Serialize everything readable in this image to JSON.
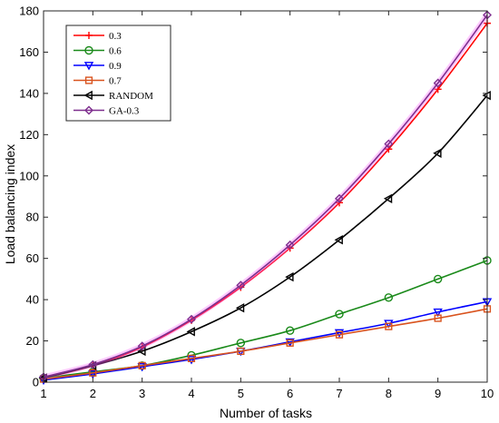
{
  "chart_data": {
    "type": "line",
    "title": "",
    "xlabel": "Number of tasks",
    "ylabel": "Load balancing index",
    "x": [
      1,
      2,
      3,
      4,
      5,
      6,
      7,
      8,
      9,
      10
    ],
    "xlim": [
      1,
      10
    ],
    "ylim": [
      0,
      180
    ],
    "xticks": [
      "1",
      "2",
      "3",
      "4",
      "5",
      "6",
      "7",
      "8",
      "9",
      "10"
    ],
    "yticks": [
      "0",
      "20",
      "40",
      "60",
      "80",
      "100",
      "120",
      "140",
      "160",
      "180"
    ],
    "grid": false,
    "legend_position": "top-left",
    "series": [
      {
        "name": "0.3",
        "color": "#ff0000",
        "marker": "plus",
        "values": [
          2,
          8,
          17,
          30,
          46,
          65,
          87,
          113,
          142,
          174
        ]
      },
      {
        "name": "0.6",
        "color": "#1a8a1a",
        "marker": "circle",
        "values": [
          2,
          5,
          8,
          13,
          19,
          25,
          33,
          41,
          50,
          59
        ]
      },
      {
        "name": "0.9",
        "color": "#0000ff",
        "marker": "triangle-down",
        "values": [
          1,
          4,
          7.5,
          11,
          15,
          19.5,
          24,
          28.5,
          34,
          39
        ]
      },
      {
        "name": "0.7",
        "color": "#d9531e",
        "marker": "square",
        "values": [
          1.5,
          4.5,
          8,
          11.5,
          15,
          19,
          23,
          27,
          31,
          35.5
        ]
      },
      {
        "name": "RANDOM",
        "color": "#000000",
        "marker": "triangle-left",
        "values": [
          2,
          8,
          15,
          24.5,
          36,
          51,
          69,
          89,
          111,
          139
        ]
      },
      {
        "name": "GA-0.3",
        "color": "#7e2f8e",
        "marker": "diamond",
        "values": [
          2.5,
          8.5,
          17.5,
          30.5,
          47,
          66.5,
          89,
          115.5,
          145,
          178
        ]
      }
    ]
  }
}
